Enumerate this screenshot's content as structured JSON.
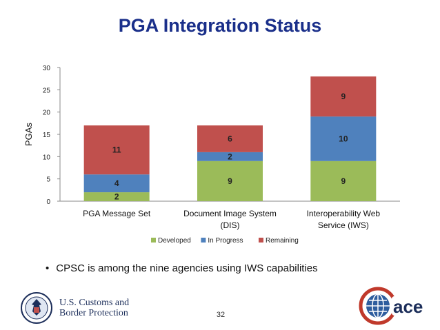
{
  "slide": {
    "title": "PGA Integration Status",
    "bullet": "CPSC is among the nine agencies using IWS capabilities",
    "bullet_marker": "•",
    "page_number": "32"
  },
  "logos": {
    "cbp_line1": "U.S. Customs and",
    "cbp_line2": "Border Protection",
    "ace_text": "ace"
  },
  "colors": {
    "title": "#1a2f8a",
    "developed": "#9bbb59",
    "in_progress": "#4f81bd",
    "remaining": "#c0504d"
  },
  "chart_data": {
    "type": "bar",
    "stacked": true,
    "categories": [
      "PGA Message Set",
      "Document Image System (DIS)",
      "Interoperability Web Service (IWS)"
    ],
    "category_lines": [
      [
        "PGA Message Set"
      ],
      [
        "Document Image System",
        "(DIS)"
      ],
      [
        "Interoperability Web",
        "Service (IWS)"
      ]
    ],
    "series": [
      {
        "name": "Developed",
        "values": [
          2,
          9,
          9
        ],
        "color": "#9bbb59"
      },
      {
        "name": "In Progress",
        "values": [
          4,
          2,
          10
        ],
        "color": "#4f81bd"
      },
      {
        "name": "Remaining",
        "values": [
          11,
          6,
          9
        ],
        "color": "#c0504d"
      }
    ],
    "ylabel": "PGAs",
    "xlabel": "",
    "ylim": [
      0,
      30
    ],
    "yticks": [
      0,
      5,
      10,
      15,
      20,
      25,
      30
    ],
    "legend": "bottom",
    "grid": false
  }
}
